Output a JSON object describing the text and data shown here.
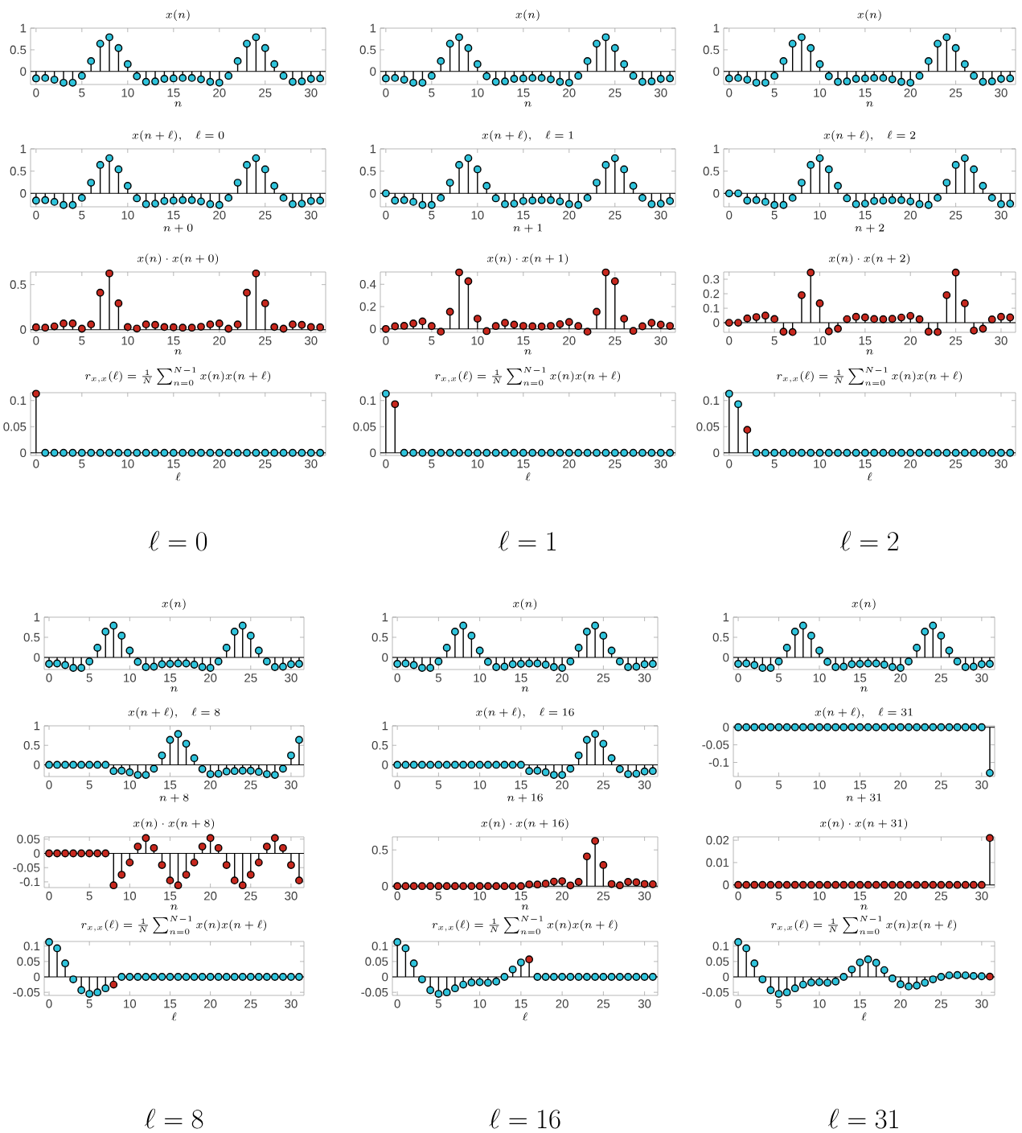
{
  "chart_data": [
    {
      "type": "lollipop",
      "title": "x(n)",
      "xlabel": "n",
      "x": [
        0,
        1,
        2,
        3,
        4,
        5,
        6,
        7,
        8,
        9,
        10,
        11,
        12,
        13,
        14,
        15,
        16,
        17,
        18,
        19,
        20,
        21,
        22,
        23,
        24,
        25,
        26,
        27,
        28,
        29,
        30,
        31
      ],
      "values": [
        -0.16,
        -0.15,
        -0.19,
        -0.26,
        -0.26,
        -0.1,
        0.24,
        0.64,
        0.79,
        0.54,
        0.17,
        -0.11,
        -0.24,
        -0.23,
        -0.17,
        -0.16,
        -0.15,
        -0.15,
        -0.18,
        -0.24,
        -0.26,
        -0.1,
        0.24,
        0.64,
        0.79,
        0.54,
        0.17,
        -0.1,
        -0.24,
        -0.23,
        -0.17,
        -0.16
      ],
      "color": "#2fc4dc",
      "marker": "circle",
      "xlim": [
        -0.6,
        31.6
      ],
      "xticks": [
        0,
        5,
        10,
        15,
        20,
        25,
        30
      ],
      "ylim": [
        -0.3,
        1
      ],
      "yticks": [
        0,
        0.5,
        1
      ]
    },
    {
      "type": "lollipop",
      "title": "x(n+\\ell),\\quad \\ell=0",
      "xlabel": "n+0",
      "x": [
        0,
        1,
        2,
        3,
        4,
        5,
        6,
        7,
        8,
        9,
        10,
        11,
        12,
        13,
        14,
        15,
        16,
        17,
        18,
        19,
        20,
        21,
        22,
        23,
        24,
        25,
        26,
        27,
        28,
        29,
        30,
        31
      ],
      "values": [
        -0.16,
        -0.15,
        -0.19,
        -0.26,
        -0.26,
        -0.1,
        0.24,
        0.64,
        0.79,
        0.54,
        0.17,
        -0.11,
        -0.24,
        -0.23,
        -0.17,
        -0.16,
        -0.15,
        -0.15,
        -0.18,
        -0.24,
        -0.26,
        -0.1,
        0.24,
        0.64,
        0.79,
        0.54,
        0.17,
        -0.1,
        -0.24,
        -0.23,
        -0.17,
        -0.16
      ],
      "color": "#2fc4dc",
      "marker": "circle",
      "xlim": [
        -0.6,
        31.6
      ],
      "xticks": [
        0,
        5,
        10,
        15,
        20,
        25,
        30
      ],
      "ylim": [
        -0.3,
        1
      ],
      "yticks": [
        0,
        0.5,
        1
      ]
    },
    {
      "type": "lollipop",
      "title": "x(n)\\cdot x(n+0)",
      "xlabel": "n",
      "x": [
        0,
        1,
        2,
        3,
        4,
        5,
        6,
        7,
        8,
        9,
        10,
        11,
        12,
        13,
        14,
        15,
        16,
        17,
        18,
        19,
        20,
        21,
        22,
        23,
        24,
        25,
        26,
        27,
        28,
        29,
        30,
        31
      ],
      "values": [
        0.026,
        0.022,
        0.036,
        0.068,
        0.068,
        0.01,
        0.058,
        0.41,
        0.624,
        0.292,
        0.029,
        0.012,
        0.058,
        0.053,
        0.029,
        0.026,
        0.022,
        0.022,
        0.032,
        0.058,
        0.068,
        0.01,
        0.058,
        0.41,
        0.624,
        0.292,
        0.029,
        0.01,
        0.058,
        0.053,
        0.029,
        0.026
      ],
      "color": "#c8281e",
      "marker": "circle",
      "xlim": [
        -0.6,
        31.6
      ],
      "xticks": [
        0,
        5,
        10,
        15,
        20,
        25,
        30
      ],
      "ylim": [
        -0.03,
        0.64
      ],
      "yticks": [
        0,
        0.5
      ]
    },
    {
      "type": "lollipop",
      "title": "r_{x,x}(\\ell)=\\frac{1}{N}\\sum_{n=0}^{N-1}x(n)x(n+\\ell)",
      "xlabel": "\\ell",
      "annotations": [
        "\\ell = 0"
      ],
      "x": [
        0,
        1,
        2,
        3,
        4,
        5,
        6,
        7,
        8,
        9,
        10,
        11,
        12,
        13,
        14,
        15,
        16,
        17,
        18,
        19,
        20,
        21,
        22,
        23,
        24,
        25,
        26,
        27,
        28,
        29,
        30,
        31
      ],
      "values": [
        0.113,
        0,
        0,
        0,
        0,
        0,
        0,
        0,
        0,
        0,
        0,
        0,
        0,
        0,
        0,
        0,
        0,
        0,
        0,
        0,
        0,
        0,
        0,
        0,
        0,
        0,
        0,
        0,
        0,
        0,
        0,
        0
      ],
      "colors": [
        "#c8281e",
        "#2fc4dc",
        "#2fc4dc",
        "#2fc4dc",
        "#2fc4dc",
        "#2fc4dc",
        "#2fc4dc",
        "#2fc4dc",
        "#2fc4dc",
        "#2fc4dc",
        "#2fc4dc",
        "#2fc4dc",
        "#2fc4dc",
        "#2fc4dc",
        "#2fc4dc",
        "#2fc4dc",
        "#2fc4dc",
        "#2fc4dc",
        "#2fc4dc",
        "#2fc4dc",
        "#2fc4dc",
        "#2fc4dc",
        "#2fc4dc",
        "#2fc4dc",
        "#2fc4dc",
        "#2fc4dc",
        "#2fc4dc",
        "#2fc4dc",
        "#2fc4dc",
        "#2fc4dc",
        "#2fc4dc",
        "#2fc4dc"
      ],
      "marker": "circle",
      "xlim": [
        -0.6,
        31.6
      ],
      "xticks": [
        0,
        5,
        10,
        15,
        20,
        25,
        30
      ],
      "ylim": [
        -0.005,
        0.115
      ],
      "yticks": [
        0,
        0.05,
        0.1
      ]
    },
    {
      "type": "lollipop",
      "title": "x(n)",
      "xlabel": "n",
      "x": [
        0,
        1,
        2,
        3,
        4,
        5,
        6,
        7,
        8,
        9,
        10,
        11,
        12,
        13,
        14,
        15,
        16,
        17,
        18,
        19,
        20,
        21,
        22,
        23,
        24,
        25,
        26,
        27,
        28,
        29,
        30,
        31
      ],
      "values": [
        -0.16,
        -0.15,
        -0.19,
        -0.26,
        -0.26,
        -0.1,
        0.24,
        0.64,
        0.79,
        0.54,
        0.17,
        -0.11,
        -0.24,
        -0.23,
        -0.17,
        -0.16,
        -0.15,
        -0.15,
        -0.18,
        -0.24,
        -0.26,
        -0.1,
        0.24,
        0.64,
        0.79,
        0.54,
        0.17,
        -0.1,
        -0.24,
        -0.23,
        -0.17,
        -0.16
      ],
      "color": "#2fc4dc",
      "marker": "circle",
      "xlim": [
        -0.6,
        31.6
      ],
      "xticks": [
        0,
        5,
        10,
        15,
        20,
        25,
        30
      ],
      "ylim": [
        -0.3,
        1
      ],
      "yticks": [
        0,
        0.5,
        1
      ]
    },
    {
      "type": "lollipop",
      "title": "x(n+\\ell),\\quad \\ell=1",
      "xlabel": "n+1",
      "x": [
        0,
        1,
        2,
        3,
        4,
        5,
        6,
        7,
        8,
        9,
        10,
        11,
        12,
        13,
        14,
        15,
        16,
        17,
        18,
        19,
        20,
        21,
        22,
        23,
        24,
        25,
        26,
        27,
        28,
        29,
        30,
        31
      ],
      "values": [
        0,
        -0.16,
        -0.15,
        -0.19,
        -0.26,
        -0.26,
        -0.1,
        0.24,
        0.64,
        0.79,
        0.54,
        0.17,
        -0.11,
        -0.24,
        -0.23,
        -0.17,
        -0.16,
        -0.15,
        -0.15,
        -0.18,
        -0.24,
        -0.26,
        -0.1,
        0.24,
        0.64,
        0.79,
        0.54,
        0.17,
        -0.1,
        -0.24,
        -0.23,
        -0.17
      ],
      "color": "#2fc4dc",
      "marker": "circle",
      "xlim": [
        -0.6,
        31.6
      ],
      "xticks": [
        0,
        5,
        10,
        15,
        20,
        25,
        30
      ],
      "ylim": [
        -0.3,
        1
      ],
      "yticks": [
        0,
        0.5,
        1
      ]
    },
    {
      "type": "lollipop",
      "title": "x(n)\\cdot x(n+1)",
      "xlabel": "n",
      "x": [
        0,
        1,
        2,
        3,
        4,
        5,
        6,
        7,
        8,
        9,
        10,
        11,
        12,
        13,
        14,
        15,
        16,
        17,
        18,
        19,
        20,
        21,
        22,
        23,
        24,
        25,
        26,
        27,
        28,
        29,
        30,
        31
      ],
      "values": [
        0,
        0.024,
        0.028,
        0.049,
        0.068,
        0.026,
        -0.024,
        0.154,
        0.506,
        0.427,
        0.092,
        -0.019,
        0.026,
        0.055,
        0.039,
        0.027,
        0.024,
        0.022,
        0.027,
        0.043,
        0.062,
        0.026,
        -0.024,
        0.154,
        0.506,
        0.427,
        0.092,
        -0.017,
        0.024,
        0.055,
        0.039,
        0.027
      ],
      "color": "#c8281e",
      "marker": "circle",
      "xlim": [
        -0.6,
        31.6
      ],
      "xticks": [
        0,
        5,
        10,
        15,
        20,
        25,
        30
      ],
      "ylim": [
        -0.03,
        0.51
      ],
      "yticks": [
        0,
        0.2,
        0.4
      ]
    },
    {
      "type": "lollipop",
      "title": "r_{x,x}(\\ell)=\\frac{1}{N}\\sum_{n=0}^{N-1}x(n)x(n+\\ell)",
      "xlabel": "\\ell",
      "annotations": [
        "\\ell = 1"
      ],
      "x": [
        0,
        1,
        2,
        3,
        4,
        5,
        6,
        7,
        8,
        9,
        10,
        11,
        12,
        13,
        14,
        15,
        16,
        17,
        18,
        19,
        20,
        21,
        22,
        23,
        24,
        25,
        26,
        27,
        28,
        29,
        30,
        31
      ],
      "values": [
        0.113,
        0.093,
        0,
        0,
        0,
        0,
        0,
        0,
        0,
        0,
        0,
        0,
        0,
        0,
        0,
        0,
        0,
        0,
        0,
        0,
        0,
        0,
        0,
        0,
        0,
        0,
        0,
        0,
        0,
        0,
        0,
        0
      ],
      "colors": [
        "#2fc4dc",
        "#c8281e",
        "#2fc4dc",
        "#2fc4dc",
        "#2fc4dc",
        "#2fc4dc",
        "#2fc4dc",
        "#2fc4dc",
        "#2fc4dc",
        "#2fc4dc",
        "#2fc4dc",
        "#2fc4dc",
        "#2fc4dc",
        "#2fc4dc",
        "#2fc4dc",
        "#2fc4dc",
        "#2fc4dc",
        "#2fc4dc",
        "#2fc4dc",
        "#2fc4dc",
        "#2fc4dc",
        "#2fc4dc",
        "#2fc4dc",
        "#2fc4dc",
        "#2fc4dc",
        "#2fc4dc",
        "#2fc4dc",
        "#2fc4dc",
        "#2fc4dc",
        "#2fc4dc",
        "#2fc4dc",
        "#2fc4dc"
      ],
      "marker": "circle",
      "xlim": [
        -0.6,
        31.6
      ],
      "xticks": [
        0,
        5,
        10,
        15,
        20,
        25,
        30
      ],
      "ylim": [
        -0.005,
        0.115
      ],
      "yticks": [
        0,
        0.05,
        0.1
      ]
    },
    {
      "type": "lollipop",
      "title": "x(n)",
      "xlabel": "n",
      "x": [
        0,
        1,
        2,
        3,
        4,
        5,
        6,
        7,
        8,
        9,
        10,
        11,
        12,
        13,
        14,
        15,
        16,
        17,
        18,
        19,
        20,
        21,
        22,
        23,
        24,
        25,
        26,
        27,
        28,
        29,
        30,
        31
      ],
      "values": [
        -0.16,
        -0.15,
        -0.19,
        -0.26,
        -0.26,
        -0.1,
        0.24,
        0.64,
        0.79,
        0.54,
        0.17,
        -0.11,
        -0.24,
        -0.23,
        -0.17,
        -0.16,
        -0.15,
        -0.15,
        -0.18,
        -0.24,
        -0.26,
        -0.1,
        0.24,
        0.64,
        0.79,
        0.54,
        0.17,
        -0.1,
        -0.24,
        -0.23,
        -0.17,
        -0.16
      ],
      "color": "#2fc4dc",
      "marker": "circle",
      "xlim": [
        -0.6,
        31.6
      ],
      "xticks": [
        0,
        5,
        10,
        15,
        20,
        25,
        30
      ],
      "ylim": [
        -0.3,
        1
      ],
      "yticks": [
        0,
        0.5,
        1
      ]
    },
    {
      "type": "lollipop",
      "title": "x(n+\\ell),\\quad \\ell=2",
      "xlabel": "n+2",
      "x": [
        0,
        1,
        2,
        3,
        4,
        5,
        6,
        7,
        8,
        9,
        10,
        11,
        12,
        13,
        14,
        15,
        16,
        17,
        18,
        19,
        20,
        21,
        22,
        23,
        24,
        25,
        26,
        27,
        28,
        29,
        30,
        31
      ],
      "values": [
        0,
        0,
        -0.16,
        -0.15,
        -0.19,
        -0.26,
        -0.26,
        -0.1,
        0.24,
        0.64,
        0.79,
        0.54,
        0.17,
        -0.11,
        -0.24,
        -0.23,
        -0.17,
        -0.16,
        -0.15,
        -0.15,
        -0.18,
        -0.24,
        -0.26,
        -0.1,
        0.24,
        0.64,
        0.79,
        0.54,
        0.17,
        -0.1,
        -0.24,
        -0.23
      ],
      "color": "#2fc4dc",
      "marker": "circle",
      "xlim": [
        -0.6,
        31.6
      ],
      "xticks": [
        0,
        5,
        10,
        15,
        20,
        25,
        30
      ],
      "ylim": [
        -0.3,
        1
      ],
      "yticks": [
        0,
        0.5,
        1
      ]
    },
    {
      "type": "lollipop",
      "title": "x(n)\\cdot x(n+2)",
      "xlabel": "n",
      "x": [
        0,
        1,
        2,
        3,
        4,
        5,
        6,
        7,
        8,
        9,
        10,
        11,
        12,
        13,
        14,
        15,
        16,
        17,
        18,
        19,
        20,
        21,
        22,
        23,
        24,
        25,
        26,
        27,
        28,
        29,
        30,
        31
      ],
      "values": [
        0,
        0,
        0.03,
        0.039,
        0.049,
        0.026,
        -0.062,
        -0.064,
        0.19,
        0.346,
        0.134,
        -0.059,
        -0.041,
        0.025,
        0.041,
        0.037,
        0.026,
        0.024,
        0.027,
        0.036,
        0.047,
        0.024,
        -0.062,
        -0.064,
        0.19,
        0.346,
        0.134,
        -0.054,
        -0.041,
        0.023,
        0.041,
        0.037
      ],
      "color": "#c8281e",
      "marker": "circle",
      "xlim": [
        -0.6,
        31.6
      ],
      "xticks": [
        0,
        5,
        10,
        15,
        20,
        25,
        30
      ],
      "ylim": [
        -0.066,
        0.35
      ],
      "yticks": [
        0,
        0.1,
        0.2,
        0.3
      ]
    },
    {
      "type": "lollipop",
      "title": "r_{x,x}(\\ell)=\\frac{1}{N}\\sum_{n=0}^{N-1}x(n)x(n+\\ell)",
      "xlabel": "\\ell",
      "annotations": [
        "\\ell = 2"
      ],
      "x": [
        0,
        1,
        2,
        3,
        4,
        5,
        6,
        7,
        8,
        9,
        10,
        11,
        12,
        13,
        14,
        15,
        16,
        17,
        18,
        19,
        20,
        21,
        22,
        23,
        24,
        25,
        26,
        27,
        28,
        29,
        30,
        31
      ],
      "values": [
        0.113,
        0.093,
        0.044,
        0,
        0,
        0,
        0,
        0,
        0,
        0,
        0,
        0,
        0,
        0,
        0,
        0,
        0,
        0,
        0,
        0,
        0,
        0,
        0,
        0,
        0,
        0,
        0,
        0,
        0,
        0,
        0,
        0
      ],
      "colors": [
        "#2fc4dc",
        "#2fc4dc",
        "#c8281e",
        "#2fc4dc",
        "#2fc4dc",
        "#2fc4dc",
        "#2fc4dc",
        "#2fc4dc",
        "#2fc4dc",
        "#2fc4dc",
        "#2fc4dc",
        "#2fc4dc",
        "#2fc4dc",
        "#2fc4dc",
        "#2fc4dc",
        "#2fc4dc",
        "#2fc4dc",
        "#2fc4dc",
        "#2fc4dc",
        "#2fc4dc",
        "#2fc4dc",
        "#2fc4dc",
        "#2fc4dc",
        "#2fc4dc",
        "#2fc4dc",
        "#2fc4dc",
        "#2fc4dc",
        "#2fc4dc",
        "#2fc4dc",
        "#2fc4dc",
        "#2fc4dc",
        "#2fc4dc"
      ],
      "marker": "circle",
      "xlim": [
        -0.6,
        31.6
      ],
      "xticks": [
        0,
        5,
        10,
        15,
        20,
        25,
        30
      ],
      "ylim": [
        -0.005,
        0.115
      ],
      "yticks": [
        0,
        0.05,
        0.1
      ]
    },
    {
      "type": "lollipop",
      "title": "x(n)",
      "xlabel": "n",
      "x": [
        0,
        1,
        2,
        3,
        4,
        5,
        6,
        7,
        8,
        9,
        10,
        11,
        12,
        13,
        14,
        15,
        16,
        17,
        18,
        19,
        20,
        21,
        22,
        23,
        24,
        25,
        26,
        27,
        28,
        29,
        30,
        31
      ],
      "values": [
        -0.16,
        -0.15,
        -0.19,
        -0.26,
        -0.26,
        -0.1,
        0.24,
        0.64,
        0.79,
        0.54,
        0.17,
        -0.11,
        -0.24,
        -0.23,
        -0.17,
        -0.16,
        -0.15,
        -0.15,
        -0.18,
        -0.24,
        -0.26,
        -0.1,
        0.24,
        0.64,
        0.79,
        0.54,
        0.17,
        -0.1,
        -0.24,
        -0.23,
        -0.17,
        -0.16
      ],
      "color": "#2fc4dc",
      "marker": "circle",
      "xlim": [
        -0.6,
        31.6
      ],
      "xticks": [
        0,
        5,
        10,
        15,
        20,
        25,
        30
      ],
      "ylim": [
        -0.3,
        1
      ],
      "yticks": [
        0,
        0.5,
        1
      ]
    },
    {
      "type": "lollipop",
      "title": "x(n+\\ell),\\quad \\ell=8",
      "xlabel": "n+8",
      "x": [
        0,
        1,
        2,
        3,
        4,
        5,
        6,
        7,
        8,
        9,
        10,
        11,
        12,
        13,
        14,
        15,
        16,
        17,
        18,
        19,
        20,
        21,
        22,
        23,
        24,
        25,
        26,
        27,
        28,
        29,
        30,
        31
      ],
      "values": [
        0,
        0,
        0,
        0,
        0,
        0,
        0,
        0,
        -0.16,
        -0.15,
        -0.19,
        -0.26,
        -0.26,
        -0.1,
        0.24,
        0.64,
        0.79,
        0.54,
        0.17,
        -0.11,
        -0.24,
        -0.23,
        -0.17,
        -0.16,
        -0.15,
        -0.15,
        -0.18,
        -0.24,
        -0.26,
        -0.1,
        0.24,
        0.64
      ],
      "color": "#2fc4dc",
      "marker": "circle",
      "xlim": [
        -0.6,
        31.6
      ],
      "xticks": [
        0,
        5,
        10,
        15,
        20,
        25,
        30
      ],
      "ylim": [
        -0.3,
        1
      ],
      "yticks": [
        0,
        0.5,
        1
      ]
    },
    {
      "type": "lollipop",
      "title": "x(n)\\cdot x(n+8)",
      "xlabel": "n",
      "x": [
        0,
        1,
        2,
        3,
        4,
        5,
        6,
        7,
        8,
        9,
        10,
        11,
        12,
        13,
        14,
        15,
        16,
        17,
        18,
        19,
        20,
        21,
        22,
        23,
        24,
        25,
        26,
        27,
        28,
        29,
        30,
        31
      ],
      "values": [
        0,
        0,
        0,
        0,
        0,
        0,
        0,
        0,
        -0.112,
        -0.075,
        -0.032,
        0.024,
        0.054,
        0.019,
        -0.041,
        -0.095,
        -0.112,
        -0.075,
        -0.032,
        0.024,
        0.054,
        0.019,
        -0.041,
        -0.095,
        -0.112,
        -0.075,
        -0.032,
        0.024,
        0.054,
        0.019,
        -0.041,
        -0.095
      ],
      "color": "#c8281e",
      "marker": "circle",
      "xlim": [
        -0.6,
        31.6
      ],
      "xticks": [
        0,
        5,
        10,
        15,
        20,
        25,
        30
      ],
      "ylim": [
        -0.12,
        0.058
      ],
      "yticks": [
        -0.1,
        -0.05,
        0,
        0.05
      ]
    },
    {
      "type": "lollipop",
      "title": "r_{x,x}(\\ell)=\\frac{1}{N}\\sum_{n=0}^{N-1}x(n)x(n+\\ell)",
      "xlabel": "\\ell",
      "annotations": [
        "\\ell = 8"
      ],
      "x": [
        0,
        1,
        2,
        3,
        4,
        5,
        6,
        7,
        8,
        9,
        10,
        11,
        12,
        13,
        14,
        15,
        16,
        17,
        18,
        19,
        20,
        21,
        22,
        23,
        24,
        25,
        26,
        27,
        28,
        29,
        30,
        31
      ],
      "values": [
        0.113,
        0.093,
        0.044,
        -0.008,
        -0.043,
        -0.055,
        -0.05,
        -0.037,
        -0.025,
        0,
        0,
        0,
        0,
        0,
        0,
        0,
        0,
        0,
        0,
        0,
        0,
        0,
        0,
        0,
        0,
        0,
        0,
        0,
        0,
        0,
        0,
        0
      ],
      "colors": [
        "#2fc4dc",
        "#2fc4dc",
        "#2fc4dc",
        "#2fc4dc",
        "#2fc4dc",
        "#2fc4dc",
        "#2fc4dc",
        "#2fc4dc",
        "#c8281e",
        "#2fc4dc",
        "#2fc4dc",
        "#2fc4dc",
        "#2fc4dc",
        "#2fc4dc",
        "#2fc4dc",
        "#2fc4dc",
        "#2fc4dc",
        "#2fc4dc",
        "#2fc4dc",
        "#2fc4dc",
        "#2fc4dc",
        "#2fc4dc",
        "#2fc4dc",
        "#2fc4dc",
        "#2fc4dc",
        "#2fc4dc",
        "#2fc4dc",
        "#2fc4dc",
        "#2fc4dc",
        "#2fc4dc",
        "#2fc4dc",
        "#2fc4dc"
      ],
      "marker": "circle",
      "xlim": [
        -0.6,
        31.6
      ],
      "xticks": [
        0,
        5,
        10,
        15,
        20,
        25,
        30
      ],
      "ylim": [
        -0.06,
        0.115
      ],
      "yticks": [
        -0.05,
        0,
        0.05,
        0.1
      ]
    },
    {
      "type": "lollipop",
      "title": "x(n)",
      "xlabel": "n",
      "x": [
        0,
        1,
        2,
        3,
        4,
        5,
        6,
        7,
        8,
        9,
        10,
        11,
        12,
        13,
        14,
        15,
        16,
        17,
        18,
        19,
        20,
        21,
        22,
        23,
        24,
        25,
        26,
        27,
        28,
        29,
        30,
        31
      ],
      "values": [
        -0.16,
        -0.15,
        -0.19,
        -0.26,
        -0.26,
        -0.1,
        0.24,
        0.64,
        0.79,
        0.54,
        0.17,
        -0.11,
        -0.24,
        -0.23,
        -0.17,
        -0.16,
        -0.15,
        -0.15,
        -0.18,
        -0.24,
        -0.26,
        -0.1,
        0.24,
        0.64,
        0.79,
        0.54,
        0.17,
        -0.1,
        -0.24,
        -0.23,
        -0.17,
        -0.16
      ],
      "color": "#2fc4dc",
      "marker": "circle",
      "xlim": [
        -0.6,
        31.6
      ],
      "xticks": [
        0,
        5,
        10,
        15,
        20,
        25,
        30
      ],
      "ylim": [
        -0.3,
        1
      ],
      "yticks": [
        0,
        0.5,
        1
      ]
    },
    {
      "type": "lollipop",
      "title": "x(n+\\ell),\\quad \\ell=16",
      "xlabel": "n+16",
      "x": [
        0,
        1,
        2,
        3,
        4,
        5,
        6,
        7,
        8,
        9,
        10,
        11,
        12,
        13,
        14,
        15,
        16,
        17,
        18,
        19,
        20,
        21,
        22,
        23,
        24,
        25,
        26,
        27,
        28,
        29,
        30,
        31
      ],
      "values": [
        0,
        0,
        0,
        0,
        0,
        0,
        0,
        0,
        0,
        0,
        0,
        0,
        0,
        0,
        0,
        0,
        -0.16,
        -0.15,
        -0.19,
        -0.26,
        -0.26,
        -0.1,
        0.24,
        0.64,
        0.79,
        0.54,
        0.17,
        -0.11,
        -0.24,
        -0.23,
        -0.17,
        -0.16
      ],
      "color": "#2fc4dc",
      "marker": "circle",
      "xlim": [
        -0.6,
        31.6
      ],
      "xticks": [
        0,
        5,
        10,
        15,
        20,
        25,
        30
      ],
      "ylim": [
        -0.3,
        1
      ],
      "yticks": [
        0,
        0.5,
        1
      ]
    },
    {
      "type": "lollipop",
      "title": "x(n)\\cdot x(n+16)",
      "xlabel": "n",
      "x": [
        0,
        1,
        2,
        3,
        4,
        5,
        6,
        7,
        8,
        9,
        10,
        11,
        12,
        13,
        14,
        15,
        16,
        17,
        18,
        19,
        20,
        21,
        22,
        23,
        24,
        25,
        26,
        27,
        28,
        29,
        30,
        31
      ],
      "values": [
        0,
        0,
        0,
        0,
        0,
        0,
        0,
        0,
        0,
        0,
        0,
        0,
        0,
        0,
        0,
        0,
        0.024,
        0.022,
        0.034,
        0.062,
        0.068,
        0.01,
        0.058,
        0.41,
        0.624,
        0.292,
        0.029,
        0.011,
        0.058,
        0.053,
        0.029,
        0.026
      ],
      "color": "#c8281e",
      "marker": "circle",
      "xlim": [
        -0.6,
        31.6
      ],
      "xticks": [
        0,
        5,
        10,
        15,
        20,
        25,
        30
      ],
      "ylim": [
        -0.02,
        0.68
      ],
      "yticks": [
        0,
        0.5
      ]
    },
    {
      "type": "lollipop",
      "title": "r_{x,x}(\\ell)=\\frac{1}{N}\\sum_{n=0}^{N-1}x(n)x(n+\\ell)",
      "xlabel": "\\ell",
      "annotations": [
        "\\ell = 16"
      ],
      "x": [
        0,
        1,
        2,
        3,
        4,
        5,
        6,
        7,
        8,
        9,
        10,
        11,
        12,
        13,
        14,
        15,
        16,
        17,
        18,
        19,
        20,
        21,
        22,
        23,
        24,
        25,
        26,
        27,
        28,
        29,
        30,
        31
      ],
      "values": [
        0.113,
        0.093,
        0.044,
        -0.008,
        -0.043,
        -0.055,
        -0.05,
        -0.037,
        -0.025,
        -0.018,
        -0.017,
        -0.019,
        -0.015,
        0,
        0.024,
        0.047,
        0.057,
        0,
        0,
        0,
        0,
        0,
        0,
        0,
        0,
        0,
        0,
        0,
        0,
        0,
        0,
        0
      ],
      "colors": [
        "#2fc4dc",
        "#2fc4dc",
        "#2fc4dc",
        "#2fc4dc",
        "#2fc4dc",
        "#2fc4dc",
        "#2fc4dc",
        "#2fc4dc",
        "#2fc4dc",
        "#2fc4dc",
        "#2fc4dc",
        "#2fc4dc",
        "#2fc4dc",
        "#2fc4dc",
        "#2fc4dc",
        "#2fc4dc",
        "#c8281e",
        "#2fc4dc",
        "#2fc4dc",
        "#2fc4dc",
        "#2fc4dc",
        "#2fc4dc",
        "#2fc4dc",
        "#2fc4dc",
        "#2fc4dc",
        "#2fc4dc",
        "#2fc4dc",
        "#2fc4dc",
        "#2fc4dc",
        "#2fc4dc",
        "#2fc4dc",
        "#2fc4dc"
      ],
      "marker": "circle",
      "xlim": [
        -0.6,
        31.6
      ],
      "xticks": [
        0,
        5,
        10,
        15,
        20,
        25,
        30
      ],
      "ylim": [
        -0.06,
        0.115
      ],
      "yticks": [
        -0.05,
        0,
        0.05,
        0.1
      ]
    },
    {
      "type": "lollipop",
      "title": "x(n)",
      "xlabel": "n",
      "x": [
        0,
        1,
        2,
        3,
        4,
        5,
        6,
        7,
        8,
        9,
        10,
        11,
        12,
        13,
        14,
        15,
        16,
        17,
        18,
        19,
        20,
        21,
        22,
        23,
        24,
        25,
        26,
        27,
        28,
        29,
        30,
        31
      ],
      "values": [
        -0.16,
        -0.15,
        -0.19,
        -0.26,
        -0.26,
        -0.1,
        0.24,
        0.64,
        0.79,
        0.54,
        0.17,
        -0.11,
        -0.24,
        -0.23,
        -0.17,
        -0.16,
        -0.15,
        -0.15,
        -0.18,
        -0.24,
        -0.26,
        -0.1,
        0.24,
        0.64,
        0.79,
        0.54,
        0.17,
        -0.1,
        -0.24,
        -0.23,
        -0.17,
        -0.16
      ],
      "color": "#2fc4dc",
      "marker": "circle",
      "xlim": [
        -0.6,
        31.6
      ],
      "xticks": [
        0,
        5,
        10,
        15,
        20,
        25,
        30
      ],
      "ylim": [
        -0.3,
        1
      ],
      "yticks": [
        0,
        0.5,
        1
      ]
    },
    {
      "type": "lollipop",
      "title": "x(n+\\ell),\\quad \\ell=31",
      "xlabel": "n+31",
      "x": [
        0,
        1,
        2,
        3,
        4,
        5,
        6,
        7,
        8,
        9,
        10,
        11,
        12,
        13,
        14,
        15,
        16,
        17,
        18,
        19,
        20,
        21,
        22,
        23,
        24,
        25,
        26,
        27,
        28,
        29,
        30,
        31
      ],
      "values": [
        0,
        0,
        0,
        0,
        0,
        0,
        0,
        0,
        0,
        0,
        0,
        0,
        0,
        0,
        0,
        0,
        0,
        0,
        0,
        0,
        0,
        0,
        0,
        0,
        0,
        0,
        0,
        0,
        0,
        0,
        0,
        -0.13
      ],
      "color": "#2fc4dc",
      "marker": "circle",
      "xlim": [
        -0.6,
        31.6
      ],
      "xticks": [
        0,
        5,
        10,
        15,
        20,
        25,
        30
      ],
      "ylim": [
        -0.14,
        0.004
      ],
      "yticks": [
        -0.1,
        -0.05,
        0
      ]
    },
    {
      "type": "lollipop",
      "title": "x(n)\\cdot x(n+31)",
      "xlabel": "n",
      "x": [
        0,
        1,
        2,
        3,
        4,
        5,
        6,
        7,
        8,
        9,
        10,
        11,
        12,
        13,
        14,
        15,
        16,
        17,
        18,
        19,
        20,
        21,
        22,
        23,
        24,
        25,
        26,
        27,
        28,
        29,
        30,
        31
      ],
      "values": [
        0,
        0,
        0,
        0,
        0,
        0,
        0,
        0,
        0,
        0,
        0,
        0,
        0,
        0,
        0,
        0,
        0,
        0,
        0,
        0,
        0,
        0,
        0,
        0,
        0,
        0,
        0,
        0,
        0,
        0,
        0,
        0.021
      ],
      "color": "#c8281e",
      "marker": "circle",
      "xlim": [
        -0.6,
        31.6
      ],
      "xticks": [
        0,
        5,
        10,
        15,
        20,
        25,
        30
      ],
      "ylim": [
        -0.0012,
        0.0215
      ],
      "yticks": [
        0,
        0.01,
        0.02
      ]
    },
    {
      "type": "lollipop",
      "title": "r_{x,x}(\\ell)=\\frac{1}{N}\\sum_{n=0}^{N-1}x(n)x(n+\\ell)",
      "xlabel": "\\ell",
      "annotations": [
        "\\ell = 31"
      ],
      "x": [
        0,
        1,
        2,
        3,
        4,
        5,
        6,
        7,
        8,
        9,
        10,
        11,
        12,
        13,
        14,
        15,
        16,
        17,
        18,
        19,
        20,
        21,
        22,
        23,
        24,
        25,
        26,
        27,
        28,
        29,
        30,
        31
      ],
      "values": [
        0.113,
        0.093,
        0.044,
        -0.008,
        -0.043,
        -0.055,
        -0.05,
        -0.037,
        -0.025,
        -0.018,
        -0.017,
        -0.019,
        -0.015,
        0,
        0.024,
        0.047,
        0.057,
        0.046,
        0.022,
        -0.005,
        -0.024,
        -0.031,
        -0.028,
        -0.019,
        -0.008,
        0,
        0.005,
        0.006,
        0.005,
        0.003,
        0.002,
        0.001
      ],
      "colors": [
        "#2fc4dc",
        "#2fc4dc",
        "#2fc4dc",
        "#2fc4dc",
        "#2fc4dc",
        "#2fc4dc",
        "#2fc4dc",
        "#2fc4dc",
        "#2fc4dc",
        "#2fc4dc",
        "#2fc4dc",
        "#2fc4dc",
        "#2fc4dc",
        "#2fc4dc",
        "#2fc4dc",
        "#2fc4dc",
        "#2fc4dc",
        "#2fc4dc",
        "#2fc4dc",
        "#2fc4dc",
        "#2fc4dc",
        "#2fc4dc",
        "#2fc4dc",
        "#2fc4dc",
        "#2fc4dc",
        "#2fc4dc",
        "#2fc4dc",
        "#2fc4dc",
        "#2fc4dc",
        "#2fc4dc",
        "#2fc4dc",
        "#c8281e"
      ],
      "marker": "circle",
      "xlim": [
        -0.6,
        31.6
      ],
      "xticks": [
        0,
        5,
        10,
        15,
        20,
        25,
        30
      ],
      "ylim": [
        -0.06,
        0.115
      ],
      "yticks": [
        -0.05,
        0,
        0.05,
        0.1
      ]
    }
  ]
}
